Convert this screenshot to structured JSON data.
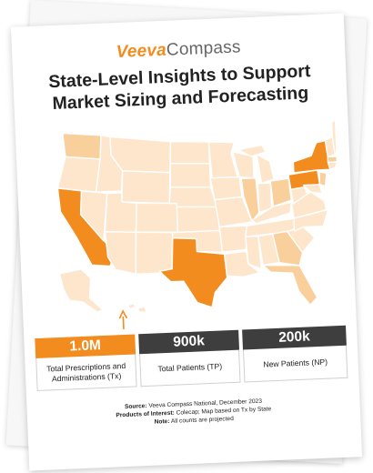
{
  "brand": {
    "veeva": "Veeva",
    "compass": "Compass"
  },
  "title_line1": "State-Level Insights to Support",
  "title_line2": "Market Sizing and Forecasting",
  "colors": {
    "orange": "#f28c1e",
    "dark": "#3e3e3e",
    "light_state": "#fde6cc",
    "mid_state": "#f9cf9c"
  },
  "stats": [
    {
      "value": "1.0M",
      "label": "Total Prescriptions and Administrations (Tx)"
    },
    {
      "value": "900k",
      "label": "Total Patients (TP)"
    },
    {
      "value": "200k",
      "label": "New Patients (NP)"
    }
  ],
  "footer": {
    "source_label": "Source:",
    "source_value": "Veeva Compass National, December 2023",
    "products_label": "Products of Interest:",
    "products_value": "Colecap; Map based on Tx by State",
    "note_label": "Note:",
    "note_value": "All counts are projected"
  }
}
